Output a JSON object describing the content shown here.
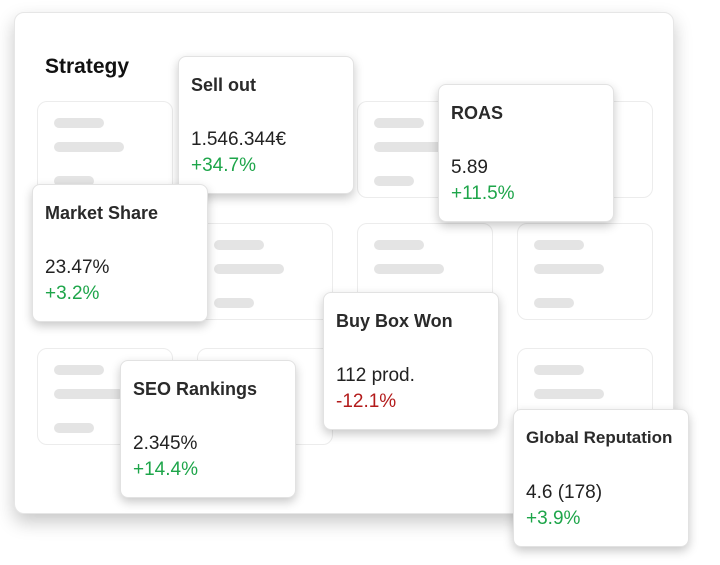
{
  "board": {
    "title": "Strategy"
  },
  "cards": {
    "sell_out": {
      "title": "Sell out",
      "value": "1.546.344€",
      "delta": "+34.7%",
      "trend": "up"
    },
    "roas": {
      "title": "ROAS",
      "value": "5.89",
      "delta": "+11.5%",
      "trend": "up"
    },
    "market_share": {
      "title": "Market Share",
      "value": "23.47%",
      "delta": "+3.2%",
      "trend": "up"
    },
    "buy_box_won": {
      "title": "Buy Box Won",
      "value": "112 prod.",
      "delta": "-12.1%",
      "trend": "down"
    },
    "seo_rankings": {
      "title": "SEO Rankings",
      "value": "2.345%",
      "delta": "+14.4%",
      "trend": "up"
    },
    "global_reputation": {
      "title": "Global Reputation",
      "value": "4.6 (178)",
      "delta": "+3.9%",
      "trend": "up"
    }
  },
  "colors": {
    "positive": "#1ea54a",
    "negative": "#b31b1b"
  }
}
